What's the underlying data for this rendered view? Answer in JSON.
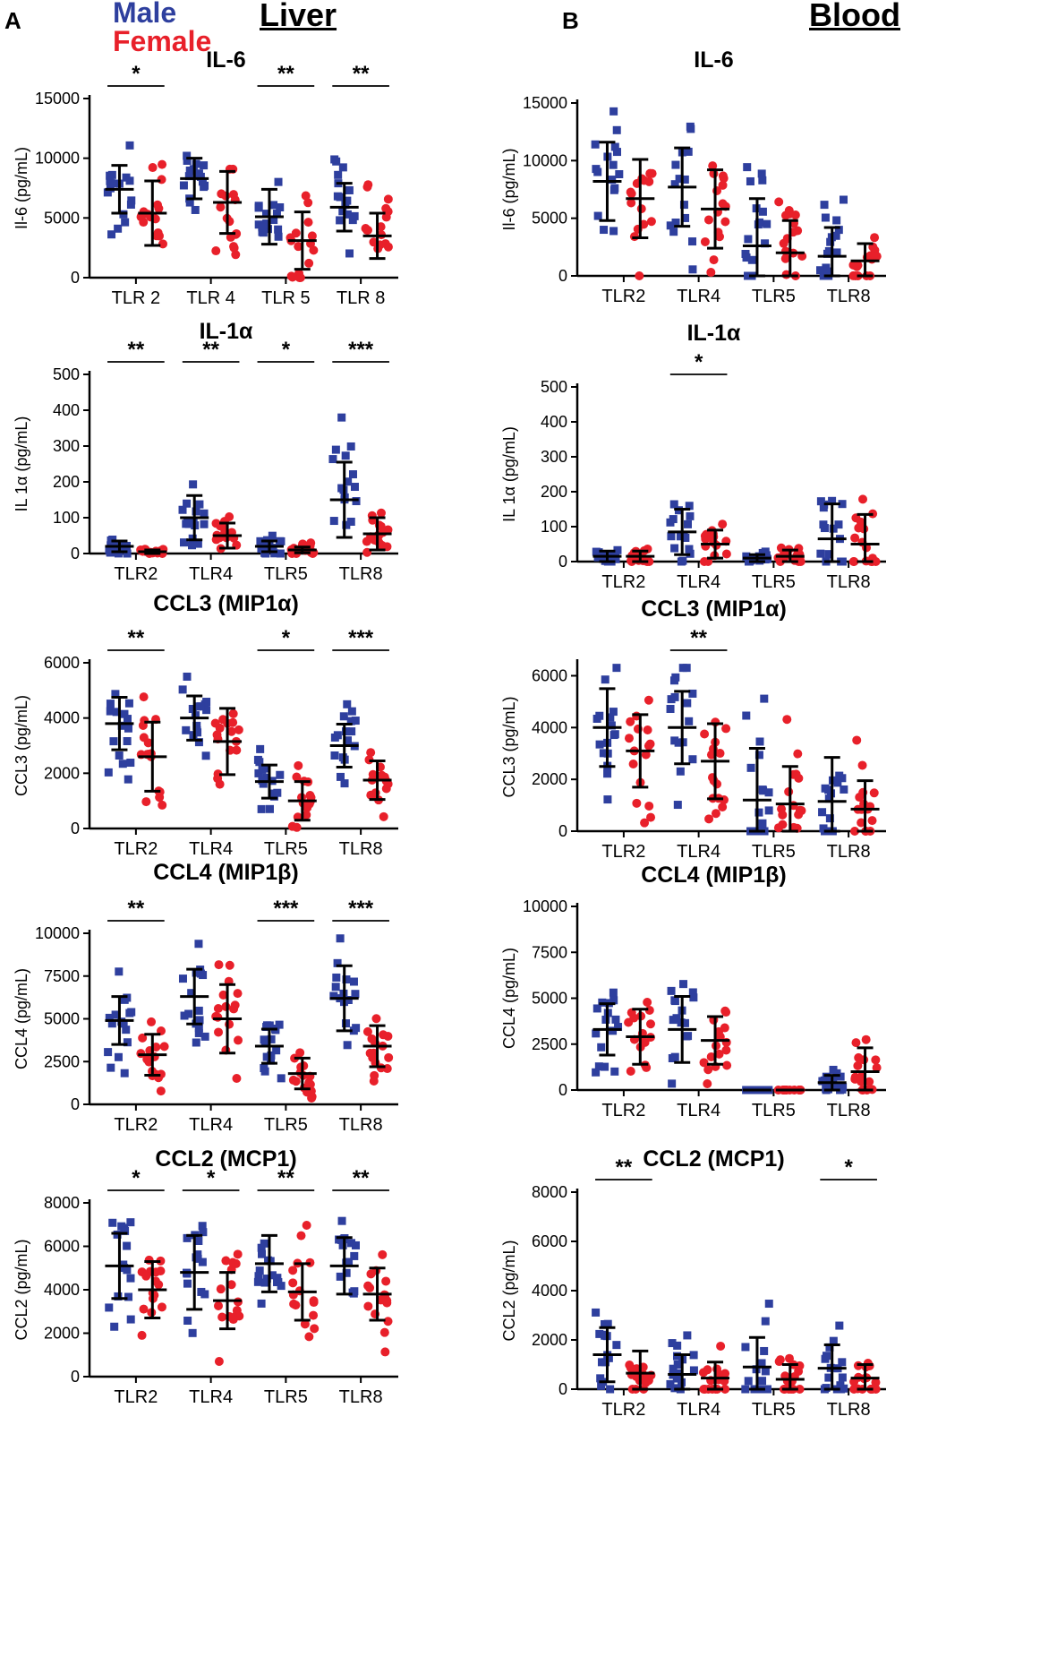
{
  "figure": {
    "panel_a": "A",
    "panel_b": "B",
    "liver_title": "Liver",
    "blood_title": "Blood",
    "legend": [
      {
        "label": "Male",
        "color": "#2e3f9e"
      },
      {
        "label": "Female",
        "color": "#e8202a"
      }
    ]
  },
  "chart_data": [
    {
      "type": "scatter",
      "panel": "A",
      "tissue": "Liver",
      "title": "IL-6",
      "ylabel": "Il-6 (pg/mL)",
      "ylim": [
        0,
        15000
      ],
      "yticks": [
        0,
        5000,
        10000,
        15000
      ],
      "categories": [
        "TLR 2",
        "TLR 4",
        "TLR 5",
        "TLR 8"
      ],
      "significance": [
        "*",
        "",
        "**",
        "**"
      ],
      "series": [
        {
          "name": "Male",
          "mean": [
            7400,
            8300,
            5100,
            5900
          ],
          "sd": [
            2000,
            1700,
            2300,
            2000
          ]
        },
        {
          "name": "Female",
          "mean": [
            5400,
            6300,
            3100,
            3500
          ],
          "sd": [
            2700,
            2600,
            2400,
            1900
          ]
        }
      ]
    },
    {
      "type": "scatter",
      "panel": "A",
      "tissue": "Liver",
      "title": "IL-1α",
      "ylabel": "IL 1α (pg/mL)",
      "ylim": [
        0,
        500
      ],
      "yticks": [
        0,
        100,
        200,
        300,
        400,
        500
      ],
      "categories": [
        "TLR2",
        "TLR4",
        "TLR5",
        "TLR8"
      ],
      "significance": [
        "**",
        "**",
        "*",
        "***"
      ],
      "series": [
        {
          "name": "Male",
          "mean": [
            20,
            100,
            20,
            150
          ],
          "sd": [
            15,
            62,
            15,
            105
          ]
        },
        {
          "name": "Female",
          "mean": [
            5,
            50,
            10,
            55
          ],
          "sd": [
            5,
            35,
            8,
            45
          ]
        }
      ]
    },
    {
      "type": "scatter",
      "panel": "A",
      "tissue": "Liver",
      "title": "CCL3 (MIP1α)",
      "ylabel": "CCL3 (pg/mL)",
      "ylim": [
        0,
        6000
      ],
      "yticks": [
        0,
        2000,
        4000,
        6000
      ],
      "categories": [
        "TLR2",
        "TLR4",
        "TLR5",
        "TLR8"
      ],
      "significance": [
        "**",
        "",
        "*",
        "***"
      ],
      "series": [
        {
          "name": "Male",
          "mean": [
            3800,
            4000,
            1700,
            3000
          ],
          "sd": [
            950,
            800,
            600,
            780
          ]
        },
        {
          "name": "Female",
          "mean": [
            2600,
            3150,
            1000,
            1750
          ],
          "sd": [
            1250,
            1200,
            700,
            700
          ]
        }
      ]
    },
    {
      "type": "scatter",
      "panel": "A",
      "tissue": "Liver",
      "title": "CCL4 (MIP1β)",
      "ylabel": "CCL4 (pg/mL)",
      "ylim": [
        0,
        10000
      ],
      "yticks": [
        0,
        2500,
        5000,
        7500,
        10000
      ],
      "categories": [
        "TLR2",
        "TLR4",
        "TLR5",
        "TLR8"
      ],
      "significance": [
        "**",
        "",
        "***",
        "***"
      ],
      "series": [
        {
          "name": "Male",
          "mean": [
            4900,
            6300,
            3400,
            6200
          ],
          "sd": [
            1400,
            1600,
            1000,
            1900
          ]
        },
        {
          "name": "Female",
          "mean": [
            2900,
            5000,
            1800,
            3400
          ],
          "sd": [
            1200,
            2000,
            900,
            1200
          ]
        }
      ]
    },
    {
      "type": "scatter",
      "panel": "A",
      "tissue": "Liver",
      "title": "CCL2 (MCP1)",
      "ylabel": "CCL2 (pg/mL)",
      "ylim": [
        0,
        8000
      ],
      "yticks": [
        0,
        2000,
        4000,
        6000,
        8000
      ],
      "categories": [
        "TLR2",
        "TLR4",
        "TLR5",
        "TLR8"
      ],
      "significance": [
        "*",
        "*",
        "**",
        "**"
      ],
      "series": [
        {
          "name": "Male",
          "mean": [
            5100,
            4800,
            5200,
            5100
          ],
          "sd": [
            1500,
            1700,
            1300,
            1300
          ]
        },
        {
          "name": "Female",
          "mean": [
            4000,
            3500,
            3900,
            3800
          ],
          "sd": [
            1300,
            1300,
            1300,
            1200
          ]
        }
      ]
    },
    {
      "type": "scatter",
      "panel": "B",
      "tissue": "Blood",
      "title": "IL-6",
      "ylabel": "Il-6 (pg/mL)",
      "ylim": [
        0,
        15000
      ],
      "yticks": [
        0,
        5000,
        10000,
        15000
      ],
      "categories": [
        "TLR2",
        "TLR4",
        "TLR5",
        "TLR8"
      ],
      "significance": [
        "",
        "",
        "",
        ""
      ],
      "series": [
        {
          "name": "Male",
          "mean": [
            8200,
            7700,
            2600,
            1700
          ],
          "sd": [
            3400,
            3400,
            4100,
            2500
          ]
        },
        {
          "name": "Female",
          "mean": [
            6700,
            5800,
            2000,
            1300
          ],
          "sd": [
            3400,
            3400,
            2800,
            1500
          ]
        }
      ]
    },
    {
      "type": "scatter",
      "panel": "B",
      "tissue": "Blood",
      "title": "IL-1α",
      "ylabel": "IL 1α (pg/mL)",
      "ylim": [
        0,
        500
      ],
      "yticks": [
        0,
        100,
        200,
        300,
        400,
        500
      ],
      "categories": [
        "TLR2",
        "TLR4",
        "TLR5",
        "TLR8"
      ],
      "significance": [
        "",
        "*",
        "",
        ""
      ],
      "series": [
        {
          "name": "Male",
          "mean": [
            15,
            85,
            10,
            65
          ],
          "sd": [
            15,
            65,
            10,
            100
          ]
        },
        {
          "name": "Female",
          "mean": [
            15,
            50,
            15,
            50
          ],
          "sd": [
            15,
            40,
            18,
            85
          ]
        }
      ]
    },
    {
      "type": "scatter",
      "panel": "B",
      "tissue": "Blood",
      "title": "CCL3 (MIP1α)",
      "ylabel": "CCL3 (pg/mL)",
      "ylim": [
        0,
        6500
      ],
      "yticks": [
        0,
        2000,
        4000,
        6000
      ],
      "categories": [
        "TLR2",
        "TLR4",
        "TLR5",
        "TLR8"
      ],
      "significance": [
        "",
        "**",
        "",
        ""
      ],
      "series": [
        {
          "name": "Male",
          "mean": [
            4000,
            4000,
            1200,
            1150
          ],
          "sd": [
            1500,
            1400,
            2000,
            1700
          ]
        },
        {
          "name": "Female",
          "mean": [
            3100,
            2700,
            1050,
            850
          ],
          "sd": [
            1400,
            1450,
            1450,
            1100
          ]
        }
      ]
    },
    {
      "type": "scatter",
      "panel": "B",
      "tissue": "Blood",
      "title": "CCL4 (MIP1β)",
      "ylabel": "CCL4 (pg/mL)",
      "ylim": [
        0,
        10000
      ],
      "yticks": [
        0,
        2500,
        5000,
        7500,
        10000
      ],
      "categories": [
        "TLR2",
        "TLR4",
        "TLR5",
        "TLR8"
      ],
      "significance": [
        "",
        "",
        "",
        ""
      ],
      "series": [
        {
          "name": "Male",
          "mean": [
            3300,
            3300,
            0,
            400
          ],
          "sd": [
            1400,
            1800,
            0,
            400
          ]
        },
        {
          "name": "Female",
          "mean": [
            2900,
            2700,
            0,
            1000
          ],
          "sd": [
            1500,
            1300,
            0,
            1300
          ]
        }
      ]
    },
    {
      "type": "scatter",
      "panel": "B",
      "tissue": "Blood",
      "title": "CCL2 (MCP1)",
      "ylabel": "CCL2 (pg/mL)",
      "ylim": [
        0,
        8000
      ],
      "yticks": [
        0,
        2000,
        4000,
        6000,
        8000
      ],
      "categories": [
        "TLR2",
        "TLR4",
        "TLR5",
        "TLR8"
      ],
      "significance": [
        "**",
        "",
        "",
        "*"
      ],
      "series": [
        {
          "name": "Male",
          "mean": [
            1400,
            600,
            900,
            850
          ],
          "sd": [
            1100,
            800,
            1200,
            950
          ]
        },
        {
          "name": "Female",
          "mean": [
            650,
            450,
            400,
            450
          ],
          "sd": [
            900,
            650,
            600,
            550
          ]
        }
      ]
    }
  ]
}
